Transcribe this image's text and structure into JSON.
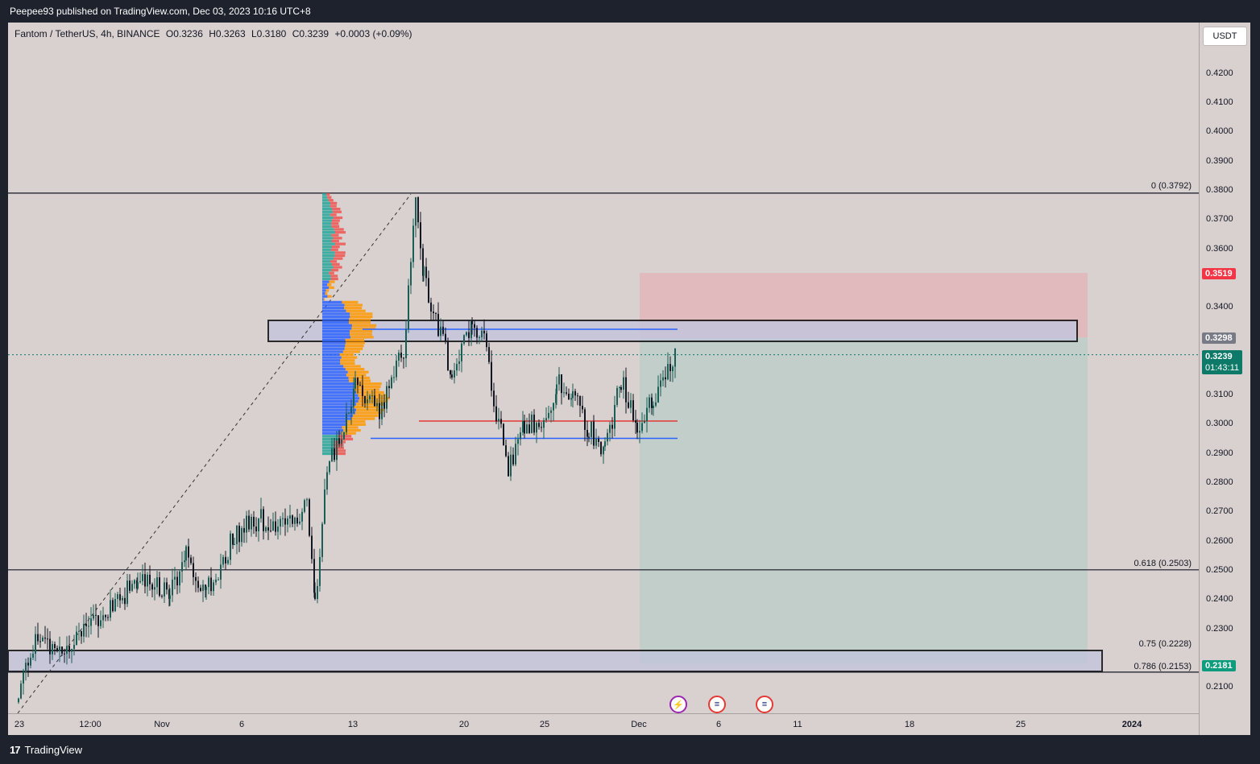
{
  "header": {
    "publisher": "Peepee93 published on TradingView.com, Dec 03, 2023 10:16 UTC+8"
  },
  "legend": {
    "symbol": "Fantom / TetherUS, 4h, BINANCE",
    "open": "O0.3236",
    "high": "H0.3263",
    "low": "L0.3180",
    "close": "C0.3239",
    "change": "+0.0003 (+0.09%)"
  },
  "currency_button": "USDT",
  "price_axis": [
    "0.4200",
    "0.4100",
    "0.4000",
    "0.3900",
    "0.3800",
    "0.3700",
    "0.3600",
    "0.3400",
    "0.3100",
    "0.3000",
    "0.2900",
    "0.2800",
    "0.2700",
    "0.2600",
    "0.2500",
    "0.2400",
    "0.2300",
    "0.2100"
  ],
  "time_axis": [
    "23",
    "12:00",
    "Nov",
    "6",
    "13",
    "20",
    "25",
    "Dec",
    "6",
    "11",
    "18",
    "25",
    "2024"
  ],
  "fib_levels": [
    {
      "label": "0 (0.3792)",
      "price": 0.3792
    },
    {
      "label": "0.618 (0.2503)",
      "price": 0.2503
    },
    {
      "label": "0.75 (0.2228)",
      "price": 0.2228
    },
    {
      "label": "0.786 (0.2153)",
      "price": 0.2153
    }
  ],
  "price_labels": {
    "stop_loss": "0.3519",
    "entry": "0.3298",
    "current_price": "0.3239",
    "countdown": "01:43:11",
    "target": "0.2181"
  },
  "colors": {
    "bull": "#1b5e55",
    "bear": "#131722",
    "risk_zone": "#e8a8ae",
    "reward_zone": "#b8cdc6",
    "zone_box": "#c3c6dc",
    "poc_line": "#e53935",
    "value_area_line": "#2962ff",
    "current_price_label": "#0d7a69",
    "stop_label": "#f23645",
    "entry_label": "#787b86"
  },
  "events": [
    {
      "icon": "lightning-icon"
    },
    {
      "icon": "us-flag-icon"
    },
    {
      "icon": "us-flag-icon"
    }
  ],
  "brand": "TradingView"
}
